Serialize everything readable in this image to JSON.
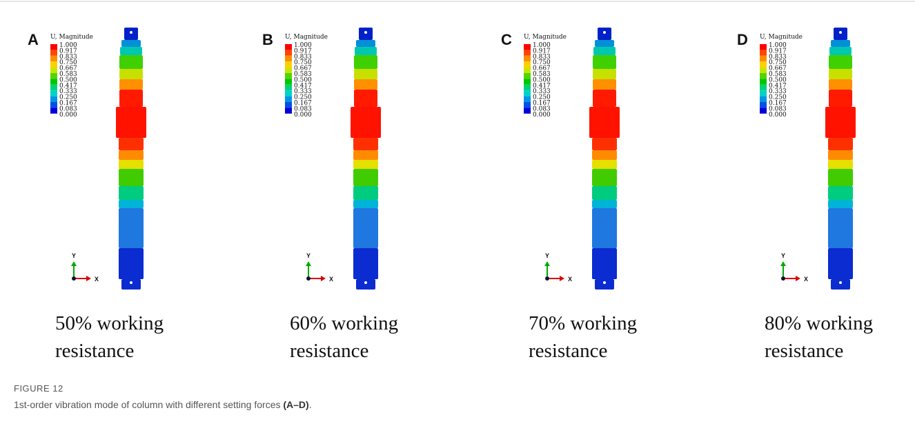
{
  "panels": [
    {
      "label": "A",
      "legend_title": "U, Magnitude",
      "legend_values": [
        "1.000",
        "0.917",
        "0.833",
        "0.750",
        "0.667",
        "0.583",
        "0.500",
        "0.417",
        "0.333",
        "0.250",
        "0.167",
        "0.083",
        "0.000"
      ],
      "axis_y": "Y",
      "axis_x": "X",
      "caption_lines": [
        "50% working",
        "resistance"
      ]
    },
    {
      "label": "B",
      "legend_title": "U, Magnitude",
      "legend_values": [
        "1.000",
        "0.917",
        "0.833",
        "0.750",
        "0.667",
        "0.583",
        "0.500",
        "0.417",
        "0.333",
        "0.250",
        "0.167",
        "0.083",
        "0.000"
      ],
      "axis_y": "Y",
      "axis_x": "X",
      "caption_lines": [
        "60% working",
        "resistance"
      ]
    },
    {
      "label": "C",
      "legend_title": "U, Magnitude",
      "legend_values": [
        "1.000",
        "0.917",
        "0.833",
        "0.750",
        "0.667",
        "0.583",
        "0.500",
        "0.417",
        "0.333",
        "0.250",
        "0.167",
        "0.083",
        "0.000"
      ],
      "axis_y": "Y",
      "axis_x": "X",
      "caption_lines": [
        "70% working",
        "resistance"
      ]
    },
    {
      "label": "D",
      "legend_title": "U, Magnitude",
      "legend_values": [
        "1.000",
        "0.917",
        "0.833",
        "0.750",
        "0.667",
        "0.583",
        "0.500",
        "0.417",
        "0.333",
        "0.250",
        "0.167",
        "0.083",
        "0.000"
      ],
      "axis_y": "Y",
      "axis_x": "X",
      "caption_lines": [
        "80% working",
        "resistance"
      ]
    }
  ],
  "figure": {
    "label": "FIGURE 12",
    "caption": "1st-order vibration mode of column with different setting forces ",
    "caption_bold": "(A–D)",
    "caption_end": "."
  }
}
